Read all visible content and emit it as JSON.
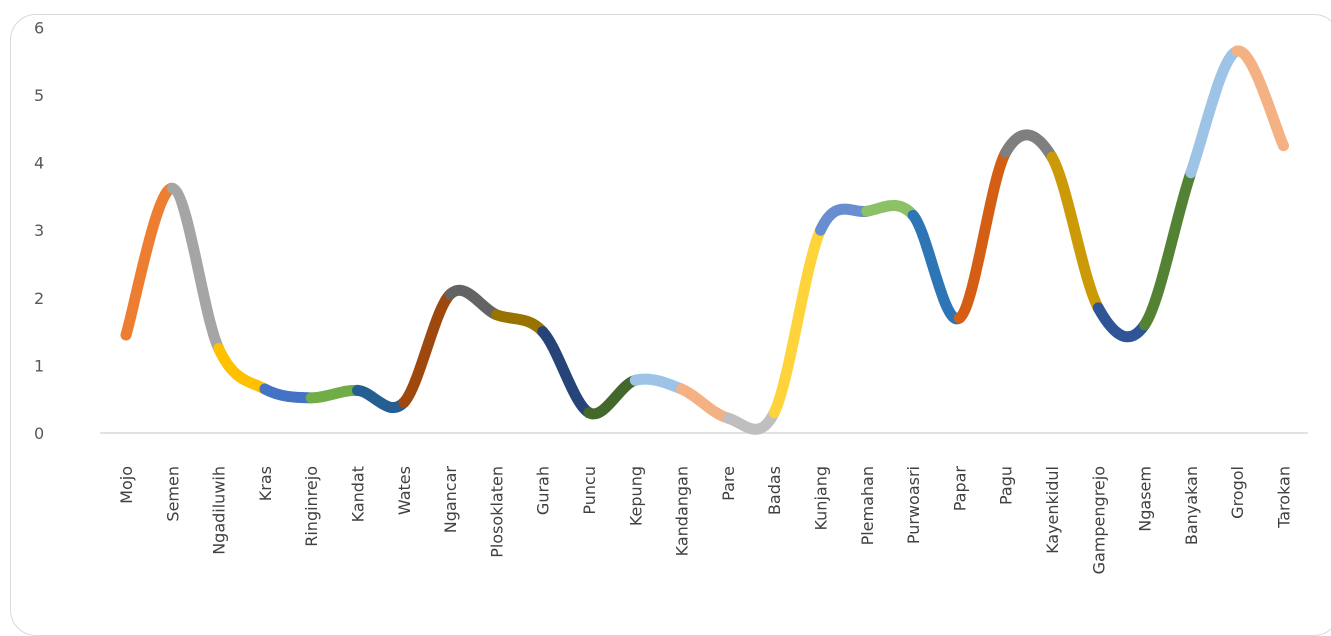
{
  "chart_data": {
    "type": "line",
    "smooth": true,
    "categories": [
      "Mojo",
      "Semen",
      "Ngadiluwih",
      "Kras",
      "Ringinrejo",
      "Kandat",
      "Wates",
      "Ngancar",
      "Plosoklaten",
      "Gurah",
      "Puncu",
      "Kepung",
      "Kandangan",
      "Pare",
      "Badas",
      "Kunjang",
      "Plemahan",
      "Purwoasri",
      "Papar",
      "Pagu",
      "Kayenkidul",
      "Gampengrejo",
      "Ngasem",
      "Banyakan",
      "Grogol",
      "Tarokan"
    ],
    "series": [
      {
        "values": [
          1.45,
          3.62,
          1.25,
          0.65,
          0.52,
          0.63,
          0.45,
          2.05,
          1.75,
          1.5,
          0.3,
          0.78,
          0.65,
          0.22,
          0.3,
          3.0,
          3.28,
          3.22,
          1.7,
          4.15,
          4.08,
          1.85,
          1.6,
          3.85,
          5.65,
          4.25
        ]
      }
    ],
    "segment_colors": [
      "#ED7D31",
      "#A5A5A5",
      "#FFC000",
      "#4472C4",
      "#70AD47",
      "#255E91",
      "#9E480E",
      "#636363",
      "#997300",
      "#264478",
      "#43682B",
      "#9DC3E6",
      "#F4B183",
      "#BFBFBF",
      "#FFD43B",
      "#698ED0",
      "#8CC168",
      "#2E75B6",
      "#D55E15",
      "#7F7F7F",
      "#CC9A06",
      "#2F5597",
      "#548235",
      "#9DC3E6",
      "#F4B183"
    ],
    "ylim": [
      0,
      6
    ],
    "yticks": [
      "0",
      "1",
      "2",
      "3",
      "4",
      "5",
      "6"
    ],
    "grid": false,
    "legend": "none",
    "title": "",
    "xlabel": "",
    "ylabel": ""
  }
}
